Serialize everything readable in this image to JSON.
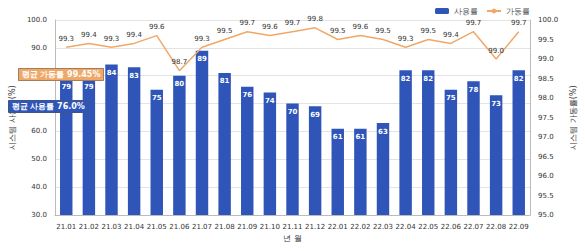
{
  "chart_data": {
    "type": "bar",
    "categories": [
      "21.01",
      "21.02",
      "21.03",
      "21.04",
      "21.05",
      "21.06",
      "21.07",
      "21.08",
      "21.09",
      "21.10",
      "21.11",
      "21.12",
      "22.01",
      "22.02",
      "22.03",
      "22.04",
      "22.05",
      "22.06",
      "22.07",
      "22.08",
      "22.09"
    ],
    "x_label": "년 월",
    "y_label": "시스템 사용률(%)",
    "y2_label": "시스템 가동률(%)",
    "series": [
      {
        "name": "사용률",
        "type": "bar",
        "color": "#2f55b8",
        "values": [
          79,
          79,
          84,
          83,
          75,
          80,
          89,
          81,
          76,
          74,
          70,
          69,
          61,
          61,
          63,
          82,
          82,
          75,
          78,
          73,
          82
        ]
      },
      {
        "name": "가동률",
        "type": "line",
        "color": "#f0a868",
        "axis": "y2",
        "values": [
          99.3,
          99.4,
          99.3,
          99.4,
          99.6,
          98.7,
          99.3,
          99.5,
          99.7,
          99.6,
          99.7,
          99.8,
          99.5,
          99.6,
          99.5,
          99.3,
          99.5,
          99.4,
          99.7,
          99.0,
          99.7
        ],
        "value_labels": [
          "99.3",
          "99.4",
          "99.3",
          "99.4",
          "99.6",
          "98.7",
          "99.3",
          "99.5",
          "99.7",
          "99.6",
          "99.7",
          "99.8",
          "99.5",
          "99.6",
          "99.5",
          "99.3",
          "99.5",
          "99.4",
          "99.7",
          "99.0",
          "99.7"
        ]
      }
    ],
    "ylim": [
      30,
      100
    ],
    "yticks": [
      {
        "value": 30,
        "label": "30.0"
      },
      {
        "value": 40,
        "label": "40.0"
      },
      {
        "value": 50,
        "label": "50.0"
      },
      {
        "value": 60,
        "label": "60.0"
      },
      {
        "value": 70,
        "label": "70.0"
      },
      {
        "value": 80,
        "label": "80.0"
      },
      {
        "value": 90,
        "label": "90.0"
      },
      {
        "value": 100,
        "label": "100.0"
      }
    ],
    "y2lim": [
      95,
      100
    ],
    "y2ticks": [
      {
        "value": 95,
        "label": "95.0"
      },
      {
        "value": 95.5,
        "label": "95.5"
      },
      {
        "value": 96,
        "label": "96.0"
      },
      {
        "value": 96.5,
        "label": "96.5"
      },
      {
        "value": 97,
        "label": "97.0"
      },
      {
        "value": 97.5,
        "label": "97.5"
      },
      {
        "value": 98,
        "label": "98.0"
      },
      {
        "value": 98.5,
        "label": "98.5"
      },
      {
        "value": 99,
        "label": "99.0"
      },
      {
        "value": 99.5,
        "label": "99.5"
      },
      {
        "value": 100,
        "label": "100.0"
      }
    ],
    "annotations": [
      {
        "text": "평균 가동률 99.45%",
        "color": "#f0a868"
      },
      {
        "text": "평균 사용률 76.0%",
        "color": "#2f55b8"
      }
    ],
    "grid": true,
    "legend": "top-right",
    "data_labels": true
  }
}
